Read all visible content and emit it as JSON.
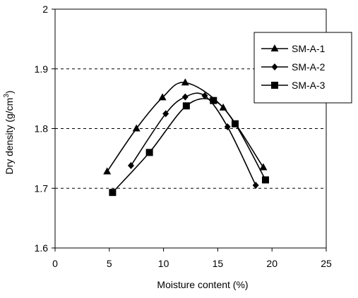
{
  "chart_data": {
    "type": "line",
    "xlabel": "Moisture content (%)",
    "ylabel_main": "Dry density (g/cm",
    "ylabel_sup": "3",
    "ylabel_close": ")",
    "xlim": [
      0,
      25
    ],
    "ylim": [
      1.6,
      2.0
    ],
    "x_ticks": [
      "0",
      "5",
      "10",
      "15",
      "20",
      "25"
    ],
    "y_ticks": [
      "1.6",
      "1.7",
      "1.8",
      "1.9",
      "2"
    ],
    "grid": "horizontal dashed",
    "legend_position": "top-right",
    "series": [
      {
        "name": "SM-A-1",
        "marker": "triangle",
        "x": [
          4.8,
          7.5,
          9.9,
          12.0,
          15.5,
          19.2
        ],
        "y": [
          1.728,
          1.8,
          1.852,
          1.877,
          1.835,
          1.735
        ]
      },
      {
        "name": "SM-A-2",
        "marker": "diamond",
        "x": [
          7.0,
          10.2,
          12.0,
          13.8,
          15.9,
          18.5
        ],
        "y": [
          1.738,
          1.825,
          1.853,
          1.855,
          1.803,
          1.705
        ]
      },
      {
        "name": "SM-A-3",
        "marker": "square",
        "x": [
          5.3,
          8.7,
          12.1,
          14.6,
          16.6,
          19.4
        ],
        "y": [
          1.693,
          1.76,
          1.838,
          1.847,
          1.808,
          1.714
        ]
      }
    ]
  }
}
